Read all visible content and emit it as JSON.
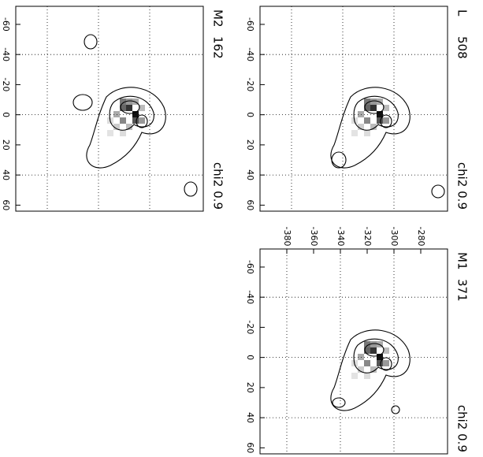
{
  "chart_data": [
    {
      "type": "contour",
      "title": "M2",
      "count": "162",
      "annotation": "chi2 0.9",
      "ylim": [
        -72,
        64
      ],
      "yticks": [
        -60,
        -40,
        -20,
        0,
        20,
        40,
        60
      ],
      "grid": true
    },
    {
      "type": "contour",
      "title": "L",
      "count": "508",
      "annotation": "chi2 0.9",
      "ylim": [
        -72,
        64
      ],
      "yticks": [
        -60,
        -40,
        -20,
        0,
        20,
        40,
        60
      ],
      "grid": true
    },
    {
      "type": "contour",
      "title": "M1",
      "count": "371",
      "annotation": "chi2 0.9",
      "ylim": [
        -72,
        64
      ],
      "yticks": [
        -60,
        -40,
        -20,
        0,
        20,
        40,
        60
      ],
      "xlim": [
        -400,
        -260
      ],
      "xticks": [
        -380,
        -360,
        -340,
        -320,
        -300,
        -280
      ],
      "grid": true
    }
  ]
}
